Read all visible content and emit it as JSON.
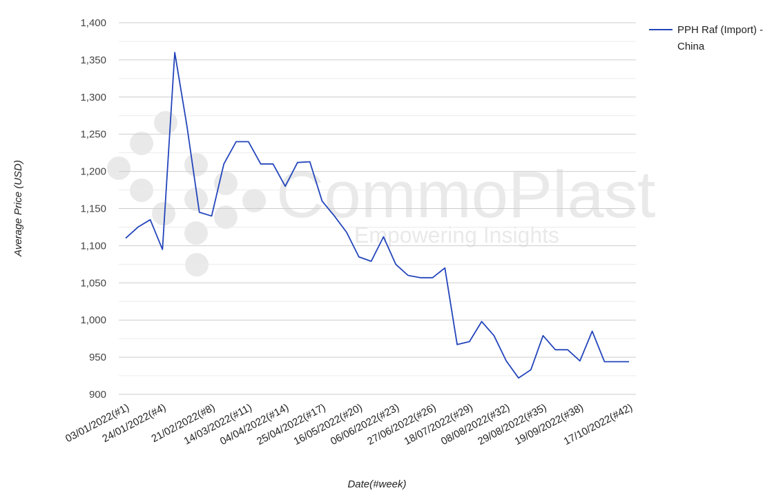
{
  "chart_data": {
    "type": "line",
    "xlabel": "Date(#week)",
    "ylabel": "Average Price (USD)",
    "ylim": [
      900,
      1400
    ],
    "yticks": [
      900,
      950,
      1000,
      1050,
      1100,
      1150,
      1200,
      1250,
      1300,
      1350,
      1400
    ],
    "ytick_labels": [
      "900",
      "950",
      "1,000",
      "1,050",
      "1,100",
      "1,150",
      "1,200",
      "1,250",
      "1,300",
      "1,350",
      "1,400"
    ],
    "grid": true,
    "legend_position": "top-right",
    "x_tick_labels": [
      "03/01/2022(#1)",
      "24/01/2022(#4)",
      "21/02/2022(#8)",
      "14/03/2022(#11)",
      "04/04/2022(#14)",
      "25/04/2022(#17)",
      "16/05/2022(#20)",
      "06/06/2022(#23)",
      "27/06/2022(#26)",
      "18/07/2022(#29)",
      "08/08/2022(#32)",
      "29/08/2022(#35)",
      "19/09/2022(#38)",
      "17/10/2022(#42)"
    ],
    "x_tick_weeks": [
      1,
      4,
      8,
      11,
      14,
      17,
      20,
      23,
      26,
      29,
      32,
      35,
      38,
      42
    ],
    "series": [
      {
        "name": "PPH Raf (Import) - China",
        "color": "#2244bb",
        "weeks": [
          1,
          2,
          3,
          4,
          5,
          6,
          7,
          8,
          9,
          10,
          11,
          12,
          13,
          14,
          15,
          16,
          17,
          18,
          19,
          20,
          21,
          22,
          23,
          24,
          25,
          26,
          27,
          28,
          29,
          30,
          31,
          32,
          33,
          34,
          35,
          36,
          37,
          38,
          39,
          40,
          41,
          42
        ],
        "values": [
          1110,
          1125,
          1135,
          1095,
          1360,
          1260,
          1145,
          1140,
          1210,
          1240,
          1240,
          1210,
          1210,
          1180,
          1212,
          1213,
          1160,
          1140,
          1118,
          1085,
          1079,
          1112,
          1075,
          1060,
          1057,
          1057,
          1070,
          967,
          971,
          998,
          979,
          945,
          922,
          933,
          979,
          960,
          960,
          945,
          985,
          944,
          944,
          944
        ]
      }
    ],
    "legend": {
      "line1": "PPH Raf (Import) -",
      "line2": "China"
    }
  },
  "watermark": {
    "brand": "CommoPlast",
    "tagline": "Empowering Insights"
  }
}
